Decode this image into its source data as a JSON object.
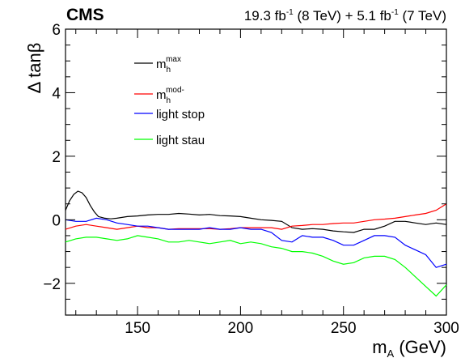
{
  "header": {
    "experiment": "CMS",
    "lumi_a": "19.3 fb",
    "lumi_a_sup": "-1",
    "lumi_a_energy": " (8 TeV) + 5.1 fb",
    "lumi_b_sup": "-1",
    "lumi_b_energy": " (7 TeV)"
  },
  "chart_data": {
    "type": "line",
    "title": "",
    "xlabel_main": "m",
    "xlabel_sub": "A",
    "xlabel_unit": " (GeV)",
    "ylabel_prefix": "Δ tan",
    "ylabel_symbol": "β",
    "xlim": [
      115,
      300
    ],
    "ylim": [
      -3,
      6
    ],
    "x_ticks": [
      150,
      200,
      250,
      300
    ],
    "y_ticks": [
      -2,
      0,
      2,
      4,
      6
    ],
    "y_tick_labels": [
      "−2",
      "0",
      "2",
      "4",
      "6"
    ],
    "grid": false,
    "legend_placement": "top-left",
    "series": [
      {
        "name": "max",
        "name_main": "m",
        "name_sub": "h",
        "name_sup": "max",
        "color": "#000000",
        "x": [
          115,
          117,
          119,
          121,
          123,
          125,
          127,
          129,
          131,
          134,
          137,
          140,
          145,
          150,
          155,
          160,
          165,
          170,
          175,
          180,
          185,
          190,
          195,
          200,
          205,
          210,
          215,
          220,
          225,
          230,
          235,
          240,
          245,
          250,
          255,
          260,
          265,
          270,
          275,
          280,
          285,
          290,
          295,
          300
        ],
        "y": [
          0.3,
          0.6,
          0.8,
          0.9,
          0.85,
          0.7,
          0.45,
          0.25,
          0.1,
          0.05,
          0.03,
          0.05,
          0.1,
          0.12,
          0.15,
          0.17,
          0.17,
          0.2,
          0.18,
          0.15,
          0.17,
          0.13,
          0.12,
          0.1,
          0.05,
          0.0,
          -0.02,
          -0.05,
          -0.25,
          -0.3,
          -0.28,
          -0.3,
          -0.35,
          -0.38,
          -0.4,
          -0.3,
          -0.3,
          -0.2,
          -0.05,
          -0.05,
          -0.1,
          -0.15,
          -0.1,
          -0.15
        ]
      },
      {
        "name": "mod-",
        "name_main": "m",
        "name_sub": "h",
        "name_sup": "mod-",
        "color": "#ff0000",
        "x": [
          115,
          120,
          125,
          130,
          135,
          140,
          145,
          150,
          155,
          160,
          165,
          170,
          175,
          180,
          185,
          190,
          195,
          200,
          205,
          210,
          215,
          220,
          225,
          230,
          235,
          240,
          245,
          250,
          255,
          260,
          265,
          270,
          275,
          280,
          285,
          290,
          295,
          300
        ],
        "y": [
          -0.3,
          -0.2,
          -0.15,
          -0.2,
          -0.25,
          -0.3,
          -0.25,
          -0.2,
          -0.25,
          -0.25,
          -0.3,
          -0.28,
          -0.28,
          -0.28,
          -0.28,
          -0.3,
          -0.28,
          -0.25,
          -0.25,
          -0.25,
          -0.25,
          -0.3,
          -0.2,
          -0.18,
          -0.15,
          -0.15,
          -0.12,
          -0.1,
          -0.1,
          -0.05,
          0.0,
          0.02,
          0.05,
          0.1,
          0.15,
          0.2,
          0.3,
          0.5
        ]
      },
      {
        "name": "light stop",
        "color": "#0000ff",
        "x": [
          115,
          120,
          125,
          130,
          135,
          140,
          145,
          150,
          155,
          160,
          165,
          170,
          175,
          180,
          185,
          190,
          195,
          200,
          205,
          210,
          215,
          220,
          225,
          230,
          235,
          240,
          245,
          250,
          255,
          260,
          265,
          270,
          275,
          280,
          285,
          290,
          295,
          300
        ],
        "y": [
          0.0,
          -0.05,
          -0.05,
          0.05,
          0.0,
          -0.1,
          -0.15,
          -0.2,
          -0.2,
          -0.25,
          -0.3,
          -0.3,
          -0.3,
          -0.3,
          -0.25,
          -0.3,
          -0.3,
          -0.25,
          -0.3,
          -0.3,
          -0.4,
          -0.65,
          -0.7,
          -0.5,
          -0.55,
          -0.55,
          -0.65,
          -0.8,
          -0.8,
          -0.65,
          -0.5,
          -0.5,
          -0.55,
          -0.8,
          -0.95,
          -1.1,
          -1.5,
          -1.4
        ]
      },
      {
        "name": "light stau",
        "color": "#00ff00",
        "x": [
          115,
          120,
          125,
          130,
          135,
          140,
          145,
          150,
          155,
          160,
          165,
          170,
          175,
          180,
          185,
          190,
          195,
          200,
          205,
          210,
          215,
          220,
          225,
          230,
          235,
          240,
          245,
          250,
          255,
          260,
          265,
          270,
          275,
          280,
          285,
          290,
          295,
          300
        ],
        "y": [
          -0.7,
          -0.6,
          -0.55,
          -0.55,
          -0.6,
          -0.65,
          -0.6,
          -0.5,
          -0.55,
          -0.6,
          -0.7,
          -0.7,
          -0.65,
          -0.7,
          -0.75,
          -0.7,
          -0.65,
          -0.75,
          -0.7,
          -0.75,
          -0.85,
          -0.9,
          -1.0,
          -1.0,
          -1.05,
          -1.15,
          -1.3,
          -1.4,
          -1.35,
          -1.2,
          -1.15,
          -1.15,
          -1.25,
          -1.5,
          -1.8,
          -2.1,
          -2.4,
          -2.05
        ]
      }
    ]
  }
}
